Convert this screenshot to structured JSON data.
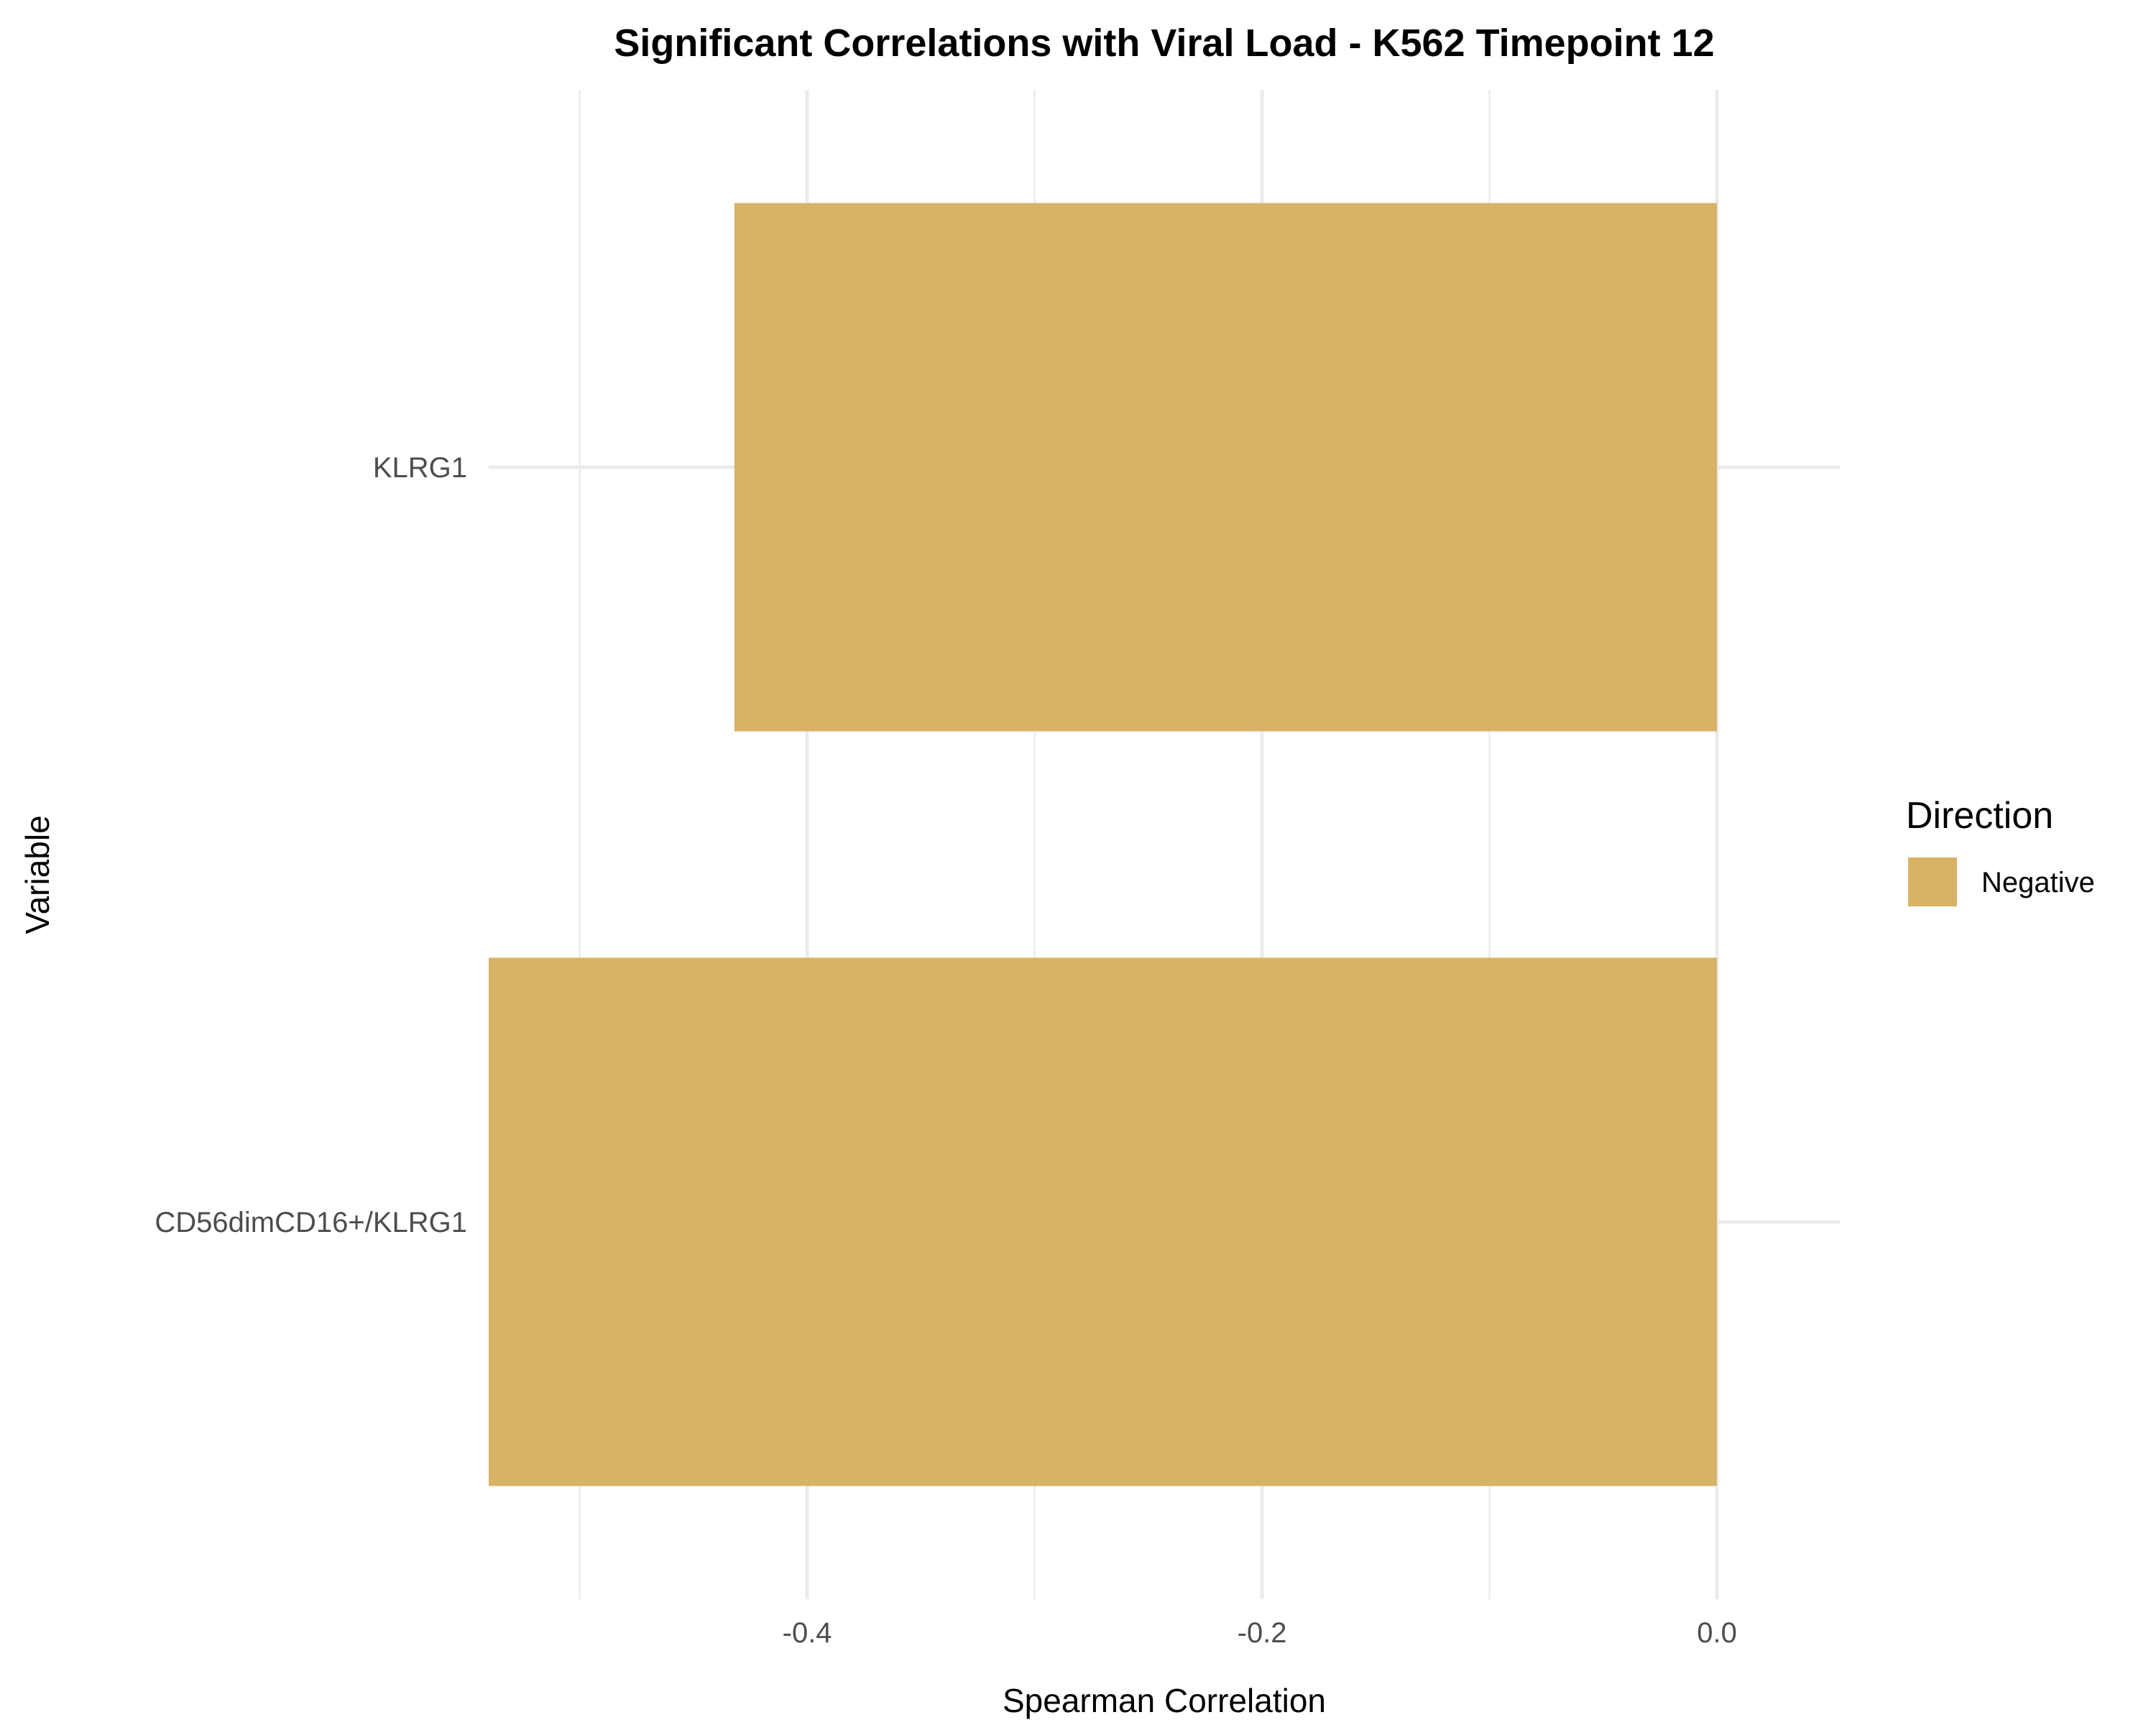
{
  "chart_data": {
    "type": "bar",
    "orientation": "horizontal",
    "title": "Significant Correlations with Viral Load - K562 Timepoint 12",
    "xlabel": "Spearman Correlation",
    "ylabel": "Variable",
    "xlim": [
      -0.54,
      0.054
    ],
    "x_ticks": [
      -0.4,
      -0.2,
      0.0
    ],
    "x_tick_labels": [
      "-0.4",
      "-0.2",
      "0.0"
    ],
    "x_minor_ticks": [
      -0.5,
      -0.3,
      -0.1
    ],
    "categories": [
      "KLRG1",
      "CD56dimCD16+/KLRG1"
    ],
    "series": [
      {
        "name": "Negative",
        "values": [
          -0.432,
          -0.54
        ],
        "color": "#d8b365"
      }
    ],
    "grid": true,
    "legend": {
      "title": "Direction",
      "position": "right",
      "entries": [
        {
          "label": "Negative",
          "color": "#d8b365"
        }
      ]
    }
  }
}
